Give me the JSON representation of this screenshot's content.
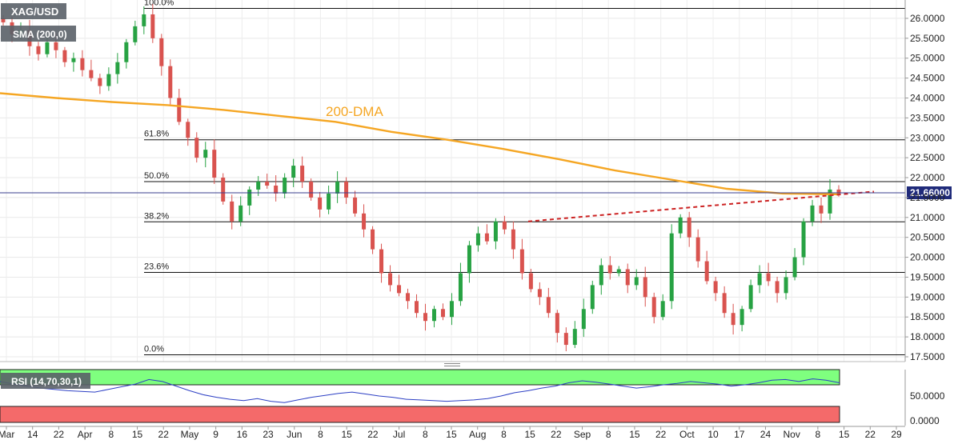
{
  "symbol": "XAG/USD",
  "sma_label": "SMA (200,0)",
  "annotation_dma": "200-DMA",
  "price_tag": "21.66000",
  "rsi_label": "RSI (14,70,30,1)",
  "colors": {
    "up": "#27a243",
    "down": "#d9534f",
    "sma": "#f5a623",
    "trend": "#cc2222",
    "rsi_line": "#2c3fc4",
    "overbought": "#7fff7f",
    "oversold": "#f46a6a"
  },
  "chart_data": [
    {
      "type": "candlestick",
      "title": "XAG/USD",
      "ylim": [
        17.5,
        26.3
      ],
      "y_ticks": [
        "26.0000",
        "25.5000",
        "25.0000",
        "24.5000",
        "24.0000",
        "23.5000",
        "23.0000",
        "22.5000",
        "22.0000",
        "21.5000",
        "21.0000",
        "20.5000",
        "20.0000",
        "19.5000",
        "19.0000",
        "18.5000",
        "18.0000",
        "17.5000"
      ],
      "x_ticks": [
        "Mar",
        "14",
        "22",
        "Apr",
        "8",
        "15",
        "22",
        "May",
        "9",
        "16",
        "23",
        "Jun",
        "8",
        "15",
        "22",
        "Jul",
        "8",
        "15",
        "Aug",
        "8",
        "15",
        "22",
        "Sep",
        "8",
        "15",
        "22",
        "Oct",
        "10",
        "17",
        "24",
        "Nov",
        "8",
        "15",
        "22",
        "29"
      ],
      "fibonacci": [
        {
          "label": "100.0%",
          "price": 26.25
        },
        {
          "label": "61.8%",
          "price": 22.95
        },
        {
          "label": "50.0%",
          "price": 21.9
        },
        {
          "label": "38.2%",
          "price": 20.89
        },
        {
          "label": "23.6%",
          "price": 19.62
        },
        {
          "label": "0.0%",
          "price": 17.55
        }
      ],
      "last_price": 21.66,
      "trendline": {
        "from_price": 20.9,
        "to_price": 21.65
      },
      "sma_200": [
        24.12,
        24.0,
        23.9,
        23.82,
        23.7,
        23.55,
        23.4,
        23.15,
        22.95,
        22.72,
        22.46,
        22.18,
        21.95,
        21.72,
        21.6,
        21.58
      ],
      "closes": [
        25.9,
        25.6,
        25.7,
        25.3,
        25.1,
        25.4,
        25.2,
        24.9,
        25.0,
        24.7,
        24.5,
        24.3,
        24.6,
        24.9,
        25.4,
        25.8,
        26.1,
        25.5,
        24.8,
        24.0,
        23.4,
        23.0,
        22.5,
        22.7,
        22.0,
        21.4,
        20.9,
        21.3,
        21.7,
        21.9,
        21.8,
        21.6,
        22.0,
        22.3,
        21.9,
        21.5,
        21.2,
        21.6,
        21.9,
        21.5,
        21.1,
        20.7,
        20.2,
        19.6,
        19.3,
        19.1,
        18.9,
        18.6,
        18.4,
        18.7,
        18.5,
        18.9,
        19.6,
        20.3,
        20.6,
        20.4,
        20.9,
        20.7,
        20.2,
        19.6,
        19.2,
        19.0,
        18.6,
        18.1,
        17.8,
        18.2,
        18.7,
        19.3,
        19.8,
        19.6,
        19.7,
        19.3,
        19.5,
        19.0,
        18.5,
        18.9,
        20.6,
        21.0,
        20.5,
        19.9,
        19.4,
        19.1,
        18.6,
        18.3,
        18.7,
        19.3,
        19.6,
        19.4,
        19.1,
        19.5,
        20.0,
        20.9,
        21.3,
        21.1,
        21.7,
        21.6
      ]
    },
    {
      "type": "line",
      "title": "RSI (14,70,30,1)",
      "ylim": [
        0,
        80
      ],
      "y_ticks": [
        "50.0000",
        "0.0000"
      ],
      "bands": {
        "overbought": 70,
        "oversold": 30
      },
      "values": [
        62,
        58,
        55,
        52,
        50,
        48,
        47,
        46,
        50,
        54,
        58,
        65,
        62,
        55,
        48,
        42,
        38,
        35,
        33,
        36,
        32,
        30,
        34,
        38,
        41,
        44,
        46,
        43,
        40,
        38,
        35,
        34,
        33,
        32,
        33,
        34,
        36,
        40,
        45,
        48,
        52,
        55,
        60,
        63,
        61,
        58,
        55,
        52,
        54,
        57,
        59,
        62,
        60,
        58,
        55,
        57,
        60,
        64,
        65,
        62,
        66,
        64,
        60
      ]
    }
  ]
}
